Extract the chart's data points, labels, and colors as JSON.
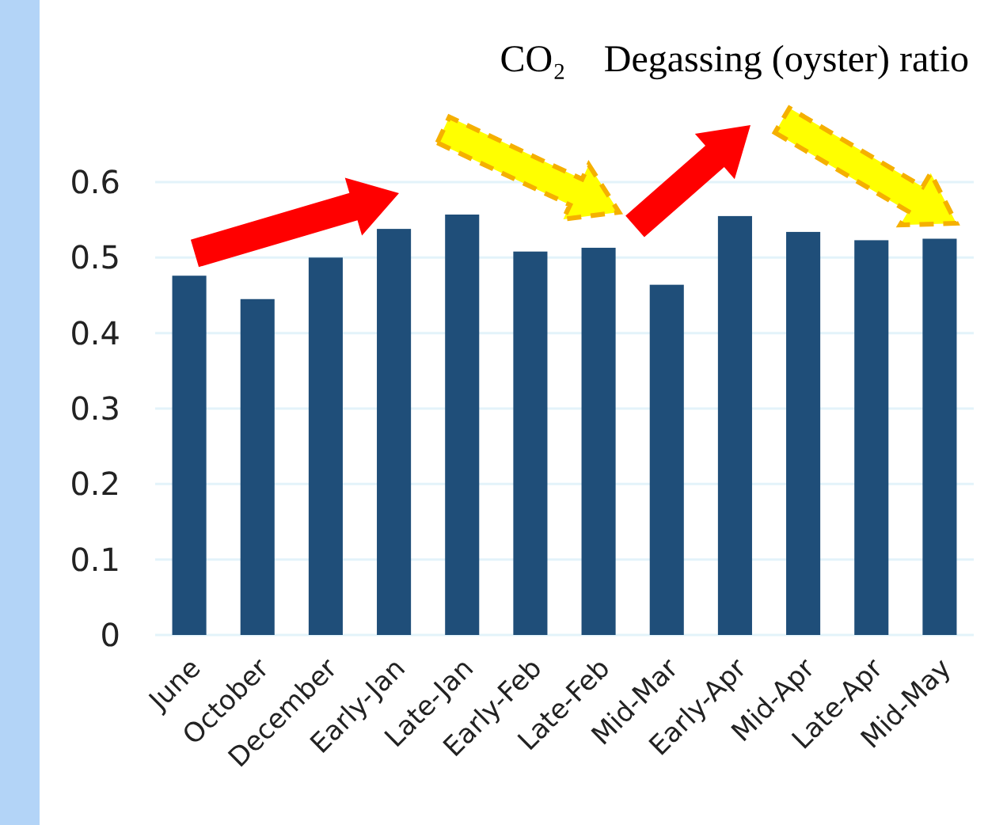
{
  "chart_data": {
    "type": "bar",
    "title": "CO₂　Degassing (oyster) ratio",
    "categories": [
      "June",
      "October",
      "December",
      "Early-Jan",
      "Late-Jan",
      "Early-Feb",
      "Late-Feb",
      "Mid-Mar",
      "Early-Apr",
      "Mid-Apr",
      "Late-Apr",
      "Mid-May"
    ],
    "values": [
      0.476,
      0.445,
      0.5,
      0.538,
      0.557,
      0.508,
      0.513,
      0.464,
      0.555,
      0.534,
      0.523,
      0.525
    ],
    "color": "#1f4e79",
    "ylim": [
      0,
      0.6
    ],
    "yticks": [
      0,
      0.1,
      0.2,
      0.3,
      0.4,
      0.5,
      0.6
    ],
    "grid": "y"
  }
}
